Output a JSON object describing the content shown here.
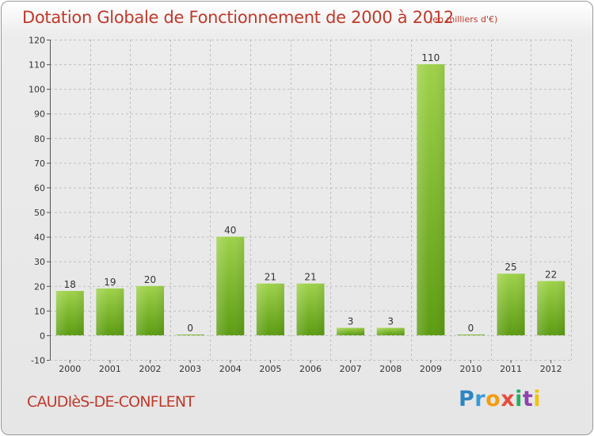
{
  "colors": {
    "title": "#c0392b",
    "bar_top": "#9ed24a",
    "bar_bottom": "#5c9c12",
    "grid": "#bfbfbf",
    "axis_text": "#333333"
  },
  "chart_data": {
    "type": "bar",
    "title": "Dotation Globale de Fonctionnement de 2000 à 2012",
    "subtitle": "(en milliers d'€)",
    "categories": [
      "2000",
      "2001",
      "2002",
      "2003",
      "2004",
      "2005",
      "2006",
      "2007",
      "2008",
      "2009",
      "2010",
      "2011",
      "2012"
    ],
    "values": [
      18,
      19,
      20,
      0,
      40,
      21,
      21,
      3,
      3,
      110,
      0,
      25,
      22
    ],
    "ylim": [
      -10,
      120
    ],
    "yticks": [
      -10,
      0,
      10,
      20,
      30,
      40,
      50,
      60,
      70,
      80,
      90,
      100,
      110,
      120
    ],
    "grid": true,
    "legend": "none"
  },
  "footer": {
    "commune": "CAUDIèS-DE-CONFLENT",
    "logo_letters": [
      {
        "ch": "P",
        "color": "#2e86c1"
      },
      {
        "ch": "r",
        "color": "#3a9bd5"
      },
      {
        "ch": "o",
        "color": "#f39c12"
      },
      {
        "ch": "x",
        "color": "#e74c3c"
      },
      {
        "ch": "i",
        "color": "#27ae60"
      },
      {
        "ch": "t",
        "color": "#8e44ad"
      },
      {
        "ch": "i",
        "color": "#f1c40f"
      }
    ]
  }
}
